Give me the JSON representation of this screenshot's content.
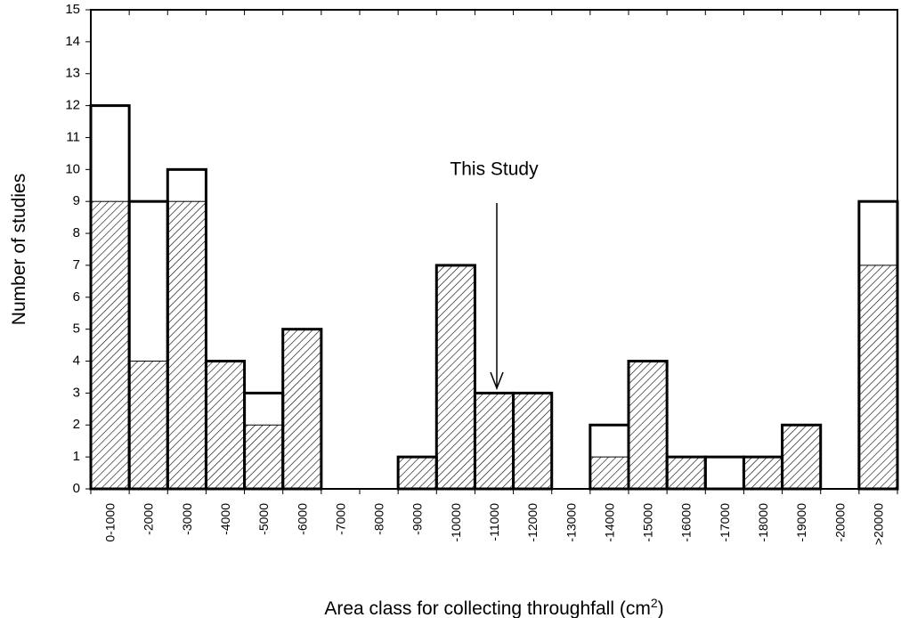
{
  "chart_data": {
    "type": "bar",
    "annotation": "This Study",
    "y_label": "Number of studies",
    "x_label": [
      "Area class for collecting throughfall (cm",
      "2",
      ")"
    ],
    "categories": [
      "0-1000",
      "-2000",
      "-3000",
      "-4000",
      "-5000",
      "-6000",
      "-7000",
      "-8000",
      "-9000",
      "-10000",
      "-11000",
      "-12000",
      "-13000",
      "-14000",
      "-15000",
      "-16000",
      "-17000",
      "-18000",
      "-19000",
      "-20000",
      ">20000"
    ],
    "series": [
      {
        "color": "#000000",
        "values": [
          12,
          9,
          10,
          4,
          3,
          5,
          0,
          0,
          1,
          7,
          3,
          3,
          0,
          2,
          4,
          1,
          1,
          1,
          2,
          0,
          9
        ]
      },
      {
        "color": "#000000",
        "values": [
          9,
          4,
          9,
          4,
          2,
          5,
          0,
          0,
          1,
          7,
          3,
          3,
          0,
          1,
          4,
          1,
          0,
          1,
          2,
          0,
          7
        ]
      }
    ],
    "ylim": [
      0,
      15
    ],
    "yticks": [
      0,
      1,
      2,
      3,
      4,
      5,
      6,
      7,
      8,
      9,
      10,
      11,
      12,
      13,
      14,
      15
    ]
  }
}
